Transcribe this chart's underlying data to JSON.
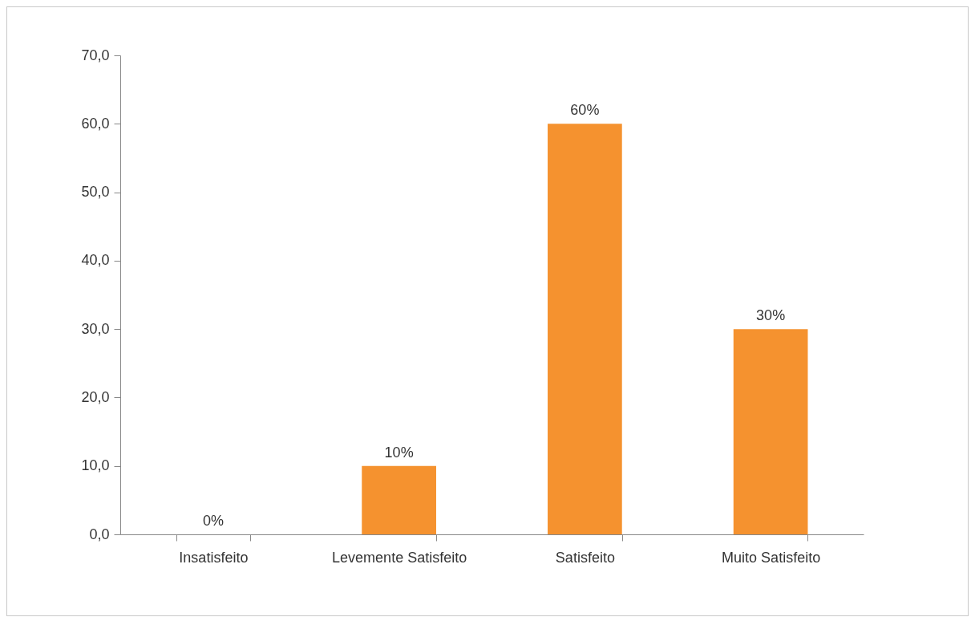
{
  "chart_data": {
    "type": "bar",
    "categories": [
      "Insatisfeito",
      "Levemente Satisfeito",
      "Satisfeito",
      "Muito Satisfeito"
    ],
    "values": [
      0,
      10,
      60,
      30
    ],
    "color": "#f5922f",
    "value_labels": [
      "0%",
      "10%",
      "60%",
      "30%"
    ],
    "ylim": [
      0,
      70
    ],
    "yticks": [
      {
        "value": 0,
        "label": "0,0"
      },
      {
        "value": 10,
        "label": "10,0"
      },
      {
        "value": 20,
        "label": "20,0"
      },
      {
        "value": 30,
        "label": "30,0"
      },
      {
        "value": 40,
        "label": "40,0"
      },
      {
        "value": 50,
        "label": "50,0"
      },
      {
        "value": 60,
        "label": "60,0"
      },
      {
        "value": 70,
        "label": "70,0"
      }
    ],
    "grid": false
  }
}
